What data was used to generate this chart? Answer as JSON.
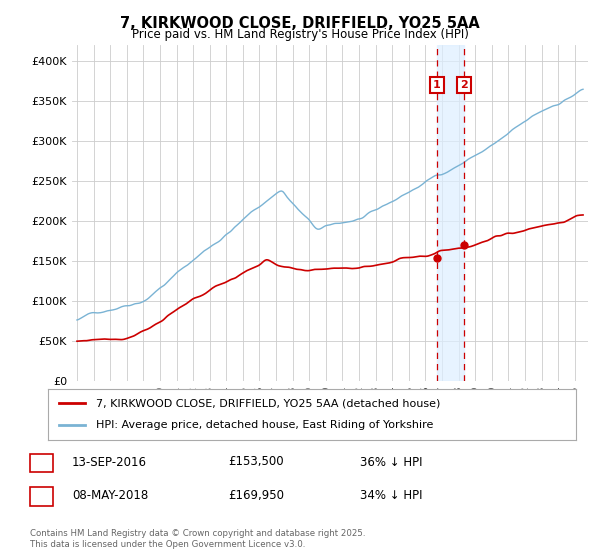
{
  "title_line1": "7, KIRKWOOD CLOSE, DRIFFIELD, YO25 5AA",
  "title_line2": "Price paid vs. HM Land Registry's House Price Index (HPI)",
  "ylabel_ticks": [
    "£0",
    "£50K",
    "£100K",
    "£150K",
    "£200K",
    "£250K",
    "£300K",
    "£350K",
    "£400K"
  ],
  "ytick_values": [
    0,
    50000,
    100000,
    150000,
    200000,
    250000,
    300000,
    350000,
    400000
  ],
  "ylim": [
    0,
    420000
  ],
  "xlim_start": 1994.7,
  "xlim_end": 2025.8,
  "hpi_color": "#7ab3d4",
  "price_color": "#cc0000",
  "vline_color": "#cc0000",
  "vband_color": "#ddeeff",
  "marker1_date": 2016.7,
  "marker1_price": 153500,
  "marker2_date": 2018.35,
  "marker2_price": 169950,
  "legend_label_red": "7, KIRKWOOD CLOSE, DRIFFIELD, YO25 5AA (detached house)",
  "legend_label_blue": "HPI: Average price, detached house, East Riding of Yorkshire",
  "table_row1": [
    "1",
    "13-SEP-2016",
    "£153,500",
    "36% ↓ HPI"
  ],
  "table_row2": [
    "2",
    "08-MAY-2018",
    "£169,950",
    "34% ↓ HPI"
  ],
  "footer": "Contains HM Land Registry data © Crown copyright and database right 2025.\nThis data is licensed under the Open Government Licence v3.0.",
  "bg_color": "#ffffff",
  "grid_color": "#cccccc"
}
